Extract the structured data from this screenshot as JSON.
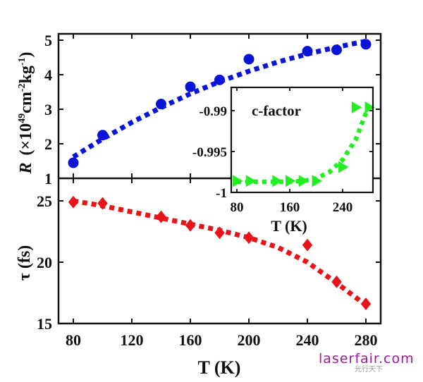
{
  "chart_data": [
    {
      "id": "R_panel",
      "type": "scatter",
      "title": "",
      "xlabel": "T (K)",
      "ylabel": "R (×10^49 cm^-2 kg^-1)",
      "ylabel_parts": {
        "symbol": "R",
        "prefix": "(×10",
        "exp1": "49",
        "mid": "cm",
        "exp2": "-2",
        "mid2": "kg",
        "exp3": "-1",
        "suffix": ")"
      },
      "xlim": [
        70,
        290
      ],
      "ylim": [
        1,
        5.2
      ],
      "yticks": [
        1,
        2,
        3,
        4,
        5
      ],
      "ytick_labels": [
        "1",
        "2",
        "3",
        "4",
        "5"
      ],
      "grid": false,
      "series": [
        {
          "name": "R",
          "marker": "circle",
          "color": "#0a14d8",
          "x": [
            80,
            100,
            140,
            160,
            180,
            200,
            240,
            260,
            280
          ],
          "y": [
            1.45,
            2.25,
            3.15,
            3.65,
            3.85,
            4.45,
            4.68,
            4.72,
            4.88
          ]
        },
        {
          "name": "R fit",
          "style": "dotted-line",
          "color": "#0a14d8",
          "x": [
            80,
            100,
            120,
            140,
            160,
            180,
            200,
            220,
            240,
            260,
            280
          ],
          "y": [
            1.62,
            2.14,
            2.62,
            3.05,
            3.45,
            3.8,
            4.1,
            4.37,
            4.6,
            4.8,
            4.97
          ]
        }
      ]
    },
    {
      "id": "tau_panel",
      "type": "scatter",
      "title": "",
      "xlabel": "T (K)",
      "ylabel": "τ (fs)",
      "xlim": [
        70,
        290
      ],
      "ylim": [
        15,
        25.5
      ],
      "xticks": [
        80,
        120,
        160,
        200,
        240,
        280
      ],
      "xtick_labels": [
        "80",
        "120",
        "160",
        "200",
        "240",
        "280"
      ],
      "yticks": [
        15,
        20,
        25
      ],
      "ytick_labels": [
        "15",
        "20",
        "25"
      ],
      "grid": false,
      "series": [
        {
          "name": "tau",
          "marker": "diamond",
          "color": "#e8141a",
          "x": [
            80,
            100,
            140,
            160,
            180,
            200,
            240,
            260,
            280
          ],
          "y": [
            24.9,
            24.8,
            23.7,
            23.0,
            22.4,
            22.0,
            21.4,
            18.4,
            16.6
          ]
        },
        {
          "name": "tau fit",
          "style": "dotted-line",
          "color": "#e8141a",
          "x": [
            80,
            100,
            120,
            140,
            160,
            180,
            200,
            220,
            240,
            260,
            280
          ],
          "y": [
            25.0,
            24.6,
            24.1,
            23.6,
            23.1,
            22.6,
            22.0,
            21.2,
            20.0,
            18.3,
            16.5
          ]
        }
      ]
    },
    {
      "id": "c_factor_inset",
      "type": "scatter",
      "title": "c-factor",
      "xlabel": "T (K)",
      "ylabel": "",
      "xlim": [
        72,
        290
      ],
      "ylim": [
        -1.0,
        -0.9882
      ],
      "xticks": [
        80,
        160,
        240
      ],
      "xtick_labels": [
        "80",
        "160",
        "240"
      ],
      "yticks": [
        -1.0,
        -0.995,
        -0.99
      ],
      "ytick_labels": [
        "-1",
        "-0.995",
        "-0.99"
      ],
      "grid": false,
      "series": [
        {
          "name": "c-factor",
          "marker": "triangle-right",
          "color": "#22ee22",
          "x": [
            80,
            100,
            140,
            160,
            180,
            200,
            240,
            260,
            280
          ],
          "y": [
            -0.9986,
            -0.9986,
            -0.9986,
            -0.9986,
            -0.9986,
            -0.9986,
            -0.9969,
            -0.9896,
            -0.9896
          ]
        },
        {
          "name": "c-factor fit",
          "style": "dotted-line",
          "color": "#22ee22",
          "x": [
            80,
            100,
            120,
            140,
            160,
            180,
            200,
            220,
            240,
            260,
            280
          ],
          "y": [
            -0.9987,
            -0.9987,
            -0.9987,
            -0.9987,
            -0.9987,
            -0.9986,
            -0.9983,
            -0.9975,
            -0.996,
            -0.9935,
            -0.9893
          ]
        }
      ]
    }
  ],
  "watermark": {
    "text": "laserfair.com",
    "sub": "光行天下"
  }
}
